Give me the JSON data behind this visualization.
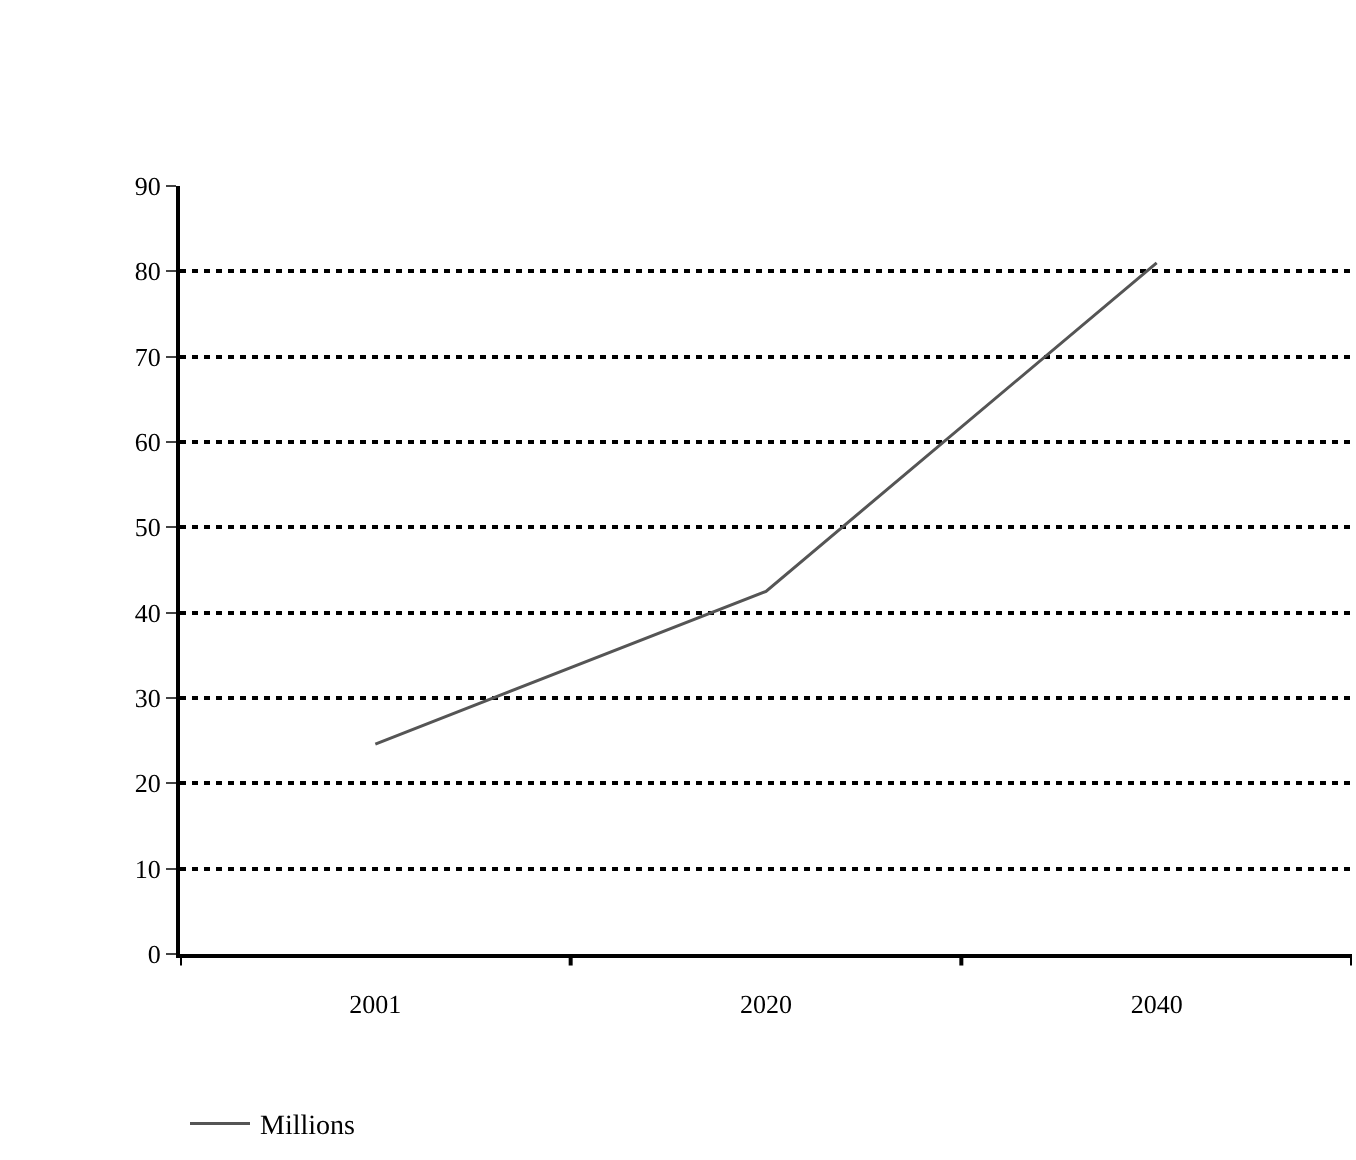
{
  "chart_data": {
    "type": "line",
    "categories": [
      "2001",
      "2020",
      "2040"
    ],
    "series": [
      {
        "name": "Millions",
        "color": "#555555",
        "values": [
          24.6,
          42.5,
          81
        ]
      }
    ],
    "ylim": [
      0,
      90
    ],
    "yticks": [
      0,
      10,
      20,
      30,
      40,
      50,
      60,
      70,
      80,
      90
    ],
    "grid": "y",
    "legend": "bottom left",
    "marker": "none",
    "line_style": "solid"
  }
}
